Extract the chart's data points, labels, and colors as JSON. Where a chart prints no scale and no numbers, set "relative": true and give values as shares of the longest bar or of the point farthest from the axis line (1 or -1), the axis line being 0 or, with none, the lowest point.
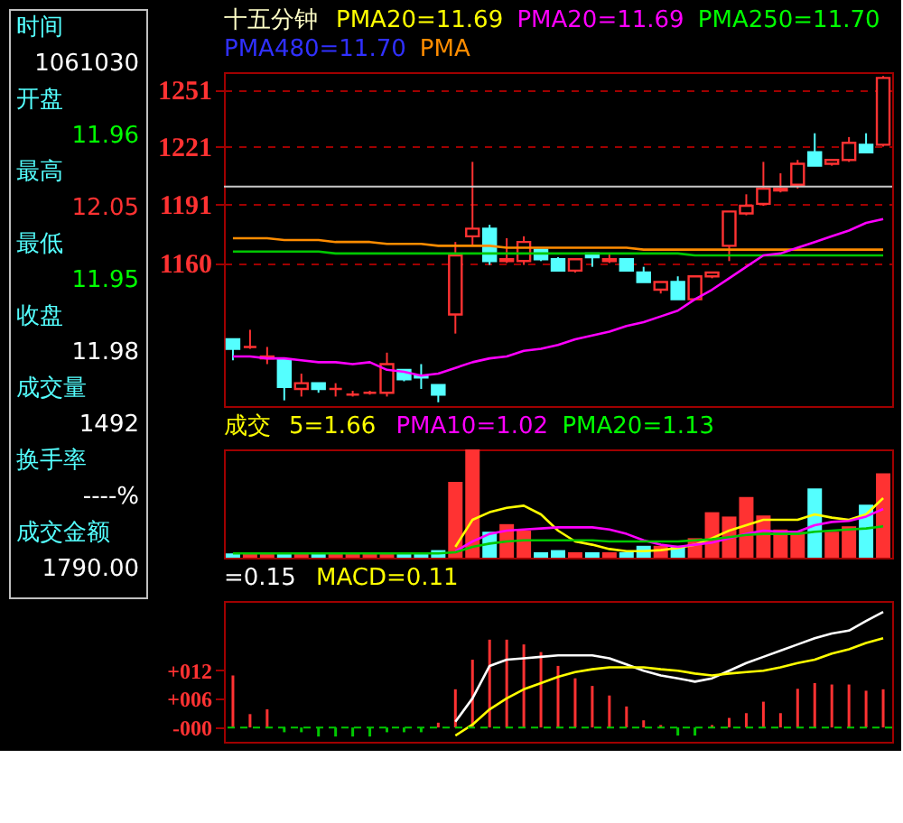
{
  "chart_data": [
    {
      "type": "candlestick",
      "title": "十五分钟",
      "annotations": [
        "PMA20=11.69",
        "PMA20=11.69",
        "PMA250=11.70",
        "PMA480=11.70",
        "PMA"
      ],
      "categories": [
        null,
        null,
        null,
        null,
        null,
        null,
        null,
        null,
        null,
        null,
        null,
        null,
        null,
        null,
        null,
        null,
        null,
        null,
        null,
        null,
        null,
        null,
        null,
        null,
        null,
        null,
        null,
        null,
        null,
        null,
        null,
        null,
        null,
        null,
        null,
        null,
        null,
        null,
        null
      ],
      "ohlc": [
        [
          1120,
          1120,
          1109,
          1115
        ],
        [
          1116,
          1125,
          1115,
          1116
        ],
        [
          1110,
          1116,
          1107,
          1111
        ],
        [
          1109,
          1109,
          1088,
          1095
        ],
        [
          1094,
          1102,
          1090,
          1097
        ],
        [
          1097,
          1097,
          1092,
          1094
        ],
        [
          1094,
          1097,
          1090,
          1094
        ],
        [
          1091,
          1093,
          1090,
          1091
        ],
        [
          1092,
          1093,
          1091,
          1092
        ],
        [
          1092,
          1113,
          1090,
          1107
        ],
        [
          1104,
          1104,
          1098,
          1099
        ],
        [
          1101,
          1107,
          1094,
          1100
        ],
        [
          1096,
          1096,
          1087,
          1091
        ],
        [
          1133,
          1171,
          1123,
          1164
        ],
        [
          1174,
          1213,
          1169,
          1178
        ],
        [
          1178,
          1180,
          1159,
          1161
        ],
        [
          1161,
          1173,
          1160,
          1162
        ],
        [
          1161,
          1174,
          1159,
          1171
        ],
        [
          1167,
          1167,
          1161,
          1162
        ],
        [
          1162,
          1163,
          1156,
          1156
        ],
        [
          1156,
          1162,
          1155,
          1162
        ],
        [
          1165,
          1165,
          1158,
          1163
        ],
        [
          1161,
          1165,
          1160,
          1162
        ],
        [
          1162,
          1162,
          1156,
          1156
        ],
        [
          1155,
          1158,
          1150,
          1150
        ],
        [
          1146,
          1150,
          1144,
          1150
        ],
        [
          1150,
          1153,
          1141,
          1141
        ],
        [
          1141,
          1153,
          1141,
          1153
        ],
        [
          1153,
          1155,
          1152,
          1155
        ],
        [
          1169,
          1187,
          1161,
          1187
        ],
        [
          1186,
          1196,
          1185,
          1190
        ],
        [
          1191,
          1213,
          1190,
          1199
        ],
        [
          1198,
          1207,
          1197,
          1199
        ],
        [
          1201,
          1214,
          1199,
          1212
        ],
        [
          1218,
          1228,
          1211,
          1211
        ],
        [
          1212,
          1214,
          1211,
          1214
        ],
        [
          1214,
          1226,
          1213,
          1223
        ],
        [
          1222,
          1228,
          1218,
          1218
        ],
        [
          1222,
          1258,
          1221,
          1257
        ]
      ],
      "colors": [
        "#54ffff",
        "#ff3232",
        "#ff3232",
        "#54ffff",
        "#ff3232",
        "#54ffff",
        "#ff3232",
        "#ff3232",
        "#ff3232",
        "#ff3232",
        "#54ffff",
        "#54ffff",
        "#54ffff",
        "#ff3232",
        "#ff3232",
        "#54ffff",
        "#ff3232",
        "#ff3232",
        "#54ffff",
        "#54ffff",
        "#ff3232",
        "#54ffff",
        "#ff3232",
        "#54ffff",
        "#54ffff",
        "#ff3232",
        "#54ffff",
        "#ff3232",
        "#ff3232",
        "#ff3232",
        "#ff3232",
        "#ff3232",
        "#ff3232",
        "#ff3232",
        "#54ffff",
        "#ff3232",
        "#ff3232",
        "#54ffff",
        "#ff3232"
      ],
      "series": [
        {
          "type": "line",
          "color": "#ff8c00",
          "values": [
            1173,
            1173,
            1173,
            1172,
            1172,
            1172,
            1171,
            1171,
            1171,
            1170,
            1170,
            1170,
            1169,
            1169,
            1169,
            1169,
            1168,
            1168,
            1168,
            1168,
            1168,
            1168,
            1168,
            1168,
            1167,
            1167,
            1167,
            1167,
            1167,
            1167,
            1167,
            1167,
            1167,
            1167,
            1167,
            1167,
            1167,
            1167,
            1167
          ]
        },
        {
          "type": "line",
          "color": "#00c800",
          "values": [
            1166,
            1166,
            1166,
            1166,
            1166,
            1166,
            1165,
            1165,
            1165,
            1165,
            1165,
            1165,
            1165,
            1165,
            1165,
            1165,
            1165,
            1165,
            1165,
            1165,
            1165,
            1165,
            1165,
            1165,
            1165,
            1165,
            1165,
            1164,
            1164,
            1164,
            1164,
            1164,
            1164,
            1164,
            1164,
            1164,
            1164,
            1164,
            1164
          ]
        },
        {
          "type": "line",
          "color": "#ff00ff",
          "values": [
            1111,
            1111,
            1110,
            1110,
            1109,
            1108,
            1108,
            1107,
            1108,
            1104,
            1103,
            1101,
            1102,
            1105,
            1108,
            1110,
            1111,
            1114,
            1115,
            1117,
            1120,
            1122,
            1124,
            1127,
            1129,
            1132,
            1135,
            1141,
            1146,
            1152,
            1158,
            1164,
            1165,
            1168,
            1171,
            1174,
            1177,
            1181,
            1183
          ]
        }
      ],
      "ylim": [
        1085,
        1260
      ],
      "yticks": [
        1160,
        1191,
        1221,
        1251
      ],
      "grid": "y",
      "ref_lines": [
        {
          "axis": "y",
          "value": 1200,
          "color": "#c8c8c8"
        }
      ]
    },
    {
      "type": "bar",
      "relative": true,
      "annotations": [
        "成交",
        "5=1.66",
        "PMA10=1.02",
        "PMA20=1.13"
      ],
      "categories": [
        null,
        null,
        null,
        null,
        null,
        null,
        null,
        null,
        null,
        null,
        null,
        null,
        null,
        null,
        null,
        null,
        null,
        null,
        null,
        null,
        null,
        null,
        null,
        null,
        null,
        null,
        null,
        null,
        null,
        null,
        null,
        null,
        null,
        null,
        null,
        null,
        null,
        null,
        null
      ],
      "series": [
        {
          "type": "bar",
          "colors": [
            "#54ffff",
            "#ff3232",
            "#ff3232",
            "#54ffff",
            "#ff3232",
            "#54ffff",
            "#ff3232",
            "#ff3232",
            "#ff3232",
            "#ff3232",
            "#54ffff",
            "#54ffff",
            "#54ffff",
            "#ff3232",
            "#ff3232",
            "#54ffff",
            "#ff3232",
            "#ff3232",
            "#54ffff",
            "#54ffff",
            "#ff3232",
            "#54ffff",
            "#ff3232",
            "#54ffff",
            "#54ffff",
            "#ff3232",
            "#54ffff",
            "#ff3232",
            "#ff3232",
            "#ff3232",
            "#ff3232",
            "#ff3232",
            "#ff3232",
            "#ff3232",
            "#54ffff",
            "#ff3232",
            "#ff3232",
            "#54ffff",
            "#ff3232"
          ],
          "values": [
            0.04,
            0.04,
            0.04,
            0.04,
            0.04,
            0.04,
            0.04,
            0.04,
            0.04,
            0.04,
            0.04,
            0.04,
            0.07,
            0.7,
            1,
            0.24,
            0.31,
            0.25,
            0.05,
            0.07,
            0.05,
            0.05,
            0.05,
            0.05,
            0.11,
            0.11,
            0.11,
            0.18,
            0.42,
            0.38,
            0.56,
            0.39,
            0.26,
            0.24,
            0.64,
            0.24,
            0.29,
            0.49,
            0.78
          ]
        },
        {
          "type": "line",
          "color": "#ffff00",
          "values": [
            null,
            null,
            null,
            null,
            null,
            null,
            null,
            null,
            null,
            null,
            null,
            null,
            null,
            0.1,
            0.35,
            0.42,
            0.46,
            0.48,
            0.4,
            0.25,
            0.15,
            0.12,
            0.08,
            0.06,
            0.06,
            0.07,
            0.09,
            0.12,
            0.18,
            0.25,
            0.3,
            0.35,
            0.35,
            0.35,
            0.4,
            0.37,
            0.35,
            0.4,
            0.55
          ]
        },
        {
          "type": "line",
          "color": "#ff00ff",
          "values": [
            null,
            null,
            null,
            null,
            null,
            null,
            null,
            null,
            null,
            null,
            null,
            null,
            null,
            0.06,
            0.15,
            0.22,
            0.25,
            0.26,
            0.27,
            0.28,
            0.28,
            0.28,
            0.26,
            0.22,
            0.16,
            0.12,
            0.1,
            0.12,
            0.14,
            0.18,
            0.22,
            0.25,
            0.24,
            0.24,
            0.3,
            0.33,
            0.34,
            0.38,
            0.45
          ]
        },
        {
          "type": "line",
          "color": "#00c800",
          "values": [
            0.04,
            0.04,
            0.04,
            0.04,
            0.04,
            0.04,
            0.04,
            0.04,
            0.04,
            0.04,
            0.04,
            0.04,
            0.04,
            0.05,
            0.1,
            0.13,
            0.15,
            0.16,
            0.16,
            0.16,
            0.16,
            0.16,
            0.15,
            0.15,
            0.15,
            0.15,
            0.15,
            0.16,
            0.17,
            0.19,
            0.21,
            0.22,
            0.22,
            0.22,
            0.24,
            0.25,
            0.26,
            0.27,
            0.29
          ]
        }
      ]
    },
    {
      "type": "bar",
      "annotations": [
        "=0.15",
        "MACD=0.11"
      ],
      "categories": [
        null,
        null,
        null,
        null,
        null,
        null,
        null,
        null,
        null,
        null,
        null,
        null,
        null,
        null,
        null,
        null,
        null,
        null,
        null,
        null,
        null,
        null,
        null,
        null,
        null,
        null,
        null,
        null,
        null,
        null,
        null,
        null,
        null,
        null,
        null,
        null,
        null,
        null,
        null
      ],
      "series": [
        {
          "type": "bar",
          "colors": [
            "#ff3232",
            "#ff3232",
            "#ff3232",
            "#00c800",
            "#00c800",
            "#00c800",
            "#00c800",
            "#00c800",
            "#00c800",
            "#00c800",
            "#00c800",
            "#00c800",
            "#ff3232",
            "#ff3232",
            "#ff3232",
            "#ff3232",
            "#ff3232",
            "#ff3232",
            "#ff3232",
            "#ff3232",
            "#ff3232",
            "#ff3232",
            "#ff3232",
            "#ff3232",
            "#ff3232",
            "#ff3232",
            "#00c800",
            "#00c800",
            "#ff3232",
            "#ff3232",
            "#ff3232",
            "#ff3232",
            "#ff3232",
            "#ff3232",
            "#ff3232",
            "#ff3232",
            "#ff3232",
            "#ff3232",
            "#ff3232"
          ],
          "values": [
            10.9,
            2.8,
            3.8,
            -1,
            -1,
            -1.9,
            -1.9,
            -1.9,
            -1.9,
            -1,
            -1,
            -1,
            1,
            8.0,
            14.2,
            18.4,
            18.4,
            17.4,
            15.8,
            12.9,
            10.3,
            8.7,
            6.7,
            4.4,
            1.5,
            0.5,
            -1.7,
            -1.7,
            0.5,
            2,
            3,
            5.4,
            3,
            8.1,
            9.3,
            9.0,
            9.0,
            7.7,
            8
          ]
        },
        {
          "type": "line",
          "color": "#ffffff",
          "values": [
            null,
            null,
            null,
            null,
            null,
            null,
            null,
            null,
            null,
            null,
            null,
            null,
            null,
            1.2,
            6.1,
            12.9,
            14.2,
            14.5,
            14.8,
            15.1,
            15.1,
            15.1,
            14.5,
            13.2,
            11.9,
            10.9,
            10.3,
            9.6,
            10.3,
            11.9,
            13.5,
            14.8,
            16.1,
            17.4,
            18.7,
            19.7,
            20.3,
            22.3,
            24.2
          ]
        },
        {
          "type": "line",
          "color": "#ffff00",
          "values": [
            null,
            null,
            null,
            null,
            null,
            null,
            null,
            null,
            null,
            null,
            null,
            null,
            null,
            -1.7,
            0.6,
            3.8,
            6.1,
            8.0,
            9.3,
            10.6,
            11.6,
            12.2,
            12.6,
            12.6,
            12.6,
            12.2,
            11.9,
            11.3,
            10.9,
            11.3,
            11.6,
            11.9,
            12.6,
            13.5,
            14.2,
            15.5,
            16.4,
            17.7,
            18.7
          ]
        }
      ],
      "ylim": [
        -3,
        26.5
      ],
      "yticks": [
        {
          "value": 12,
          "label": "+012"
        },
        {
          "value": 6,
          "label": "+006"
        },
        {
          "value": 0,
          "label": "-000"
        }
      ],
      "ref_lines": [
        {
          "axis": "y",
          "value": 0,
          "color": "#00c800",
          "line_style": "dashed"
        }
      ]
    },
    {
      "type": "other",
      "annotations": [
        "时间",
        "1061030",
        "开盘",
        "11.96",
        "最高",
        "12.05",
        "最低",
        "11.95",
        "收盘",
        "11.98",
        "成交量",
        "1492",
        "换手率",
        "----%",
        "成交金额",
        "1790.00"
      ]
    }
  ]
}
